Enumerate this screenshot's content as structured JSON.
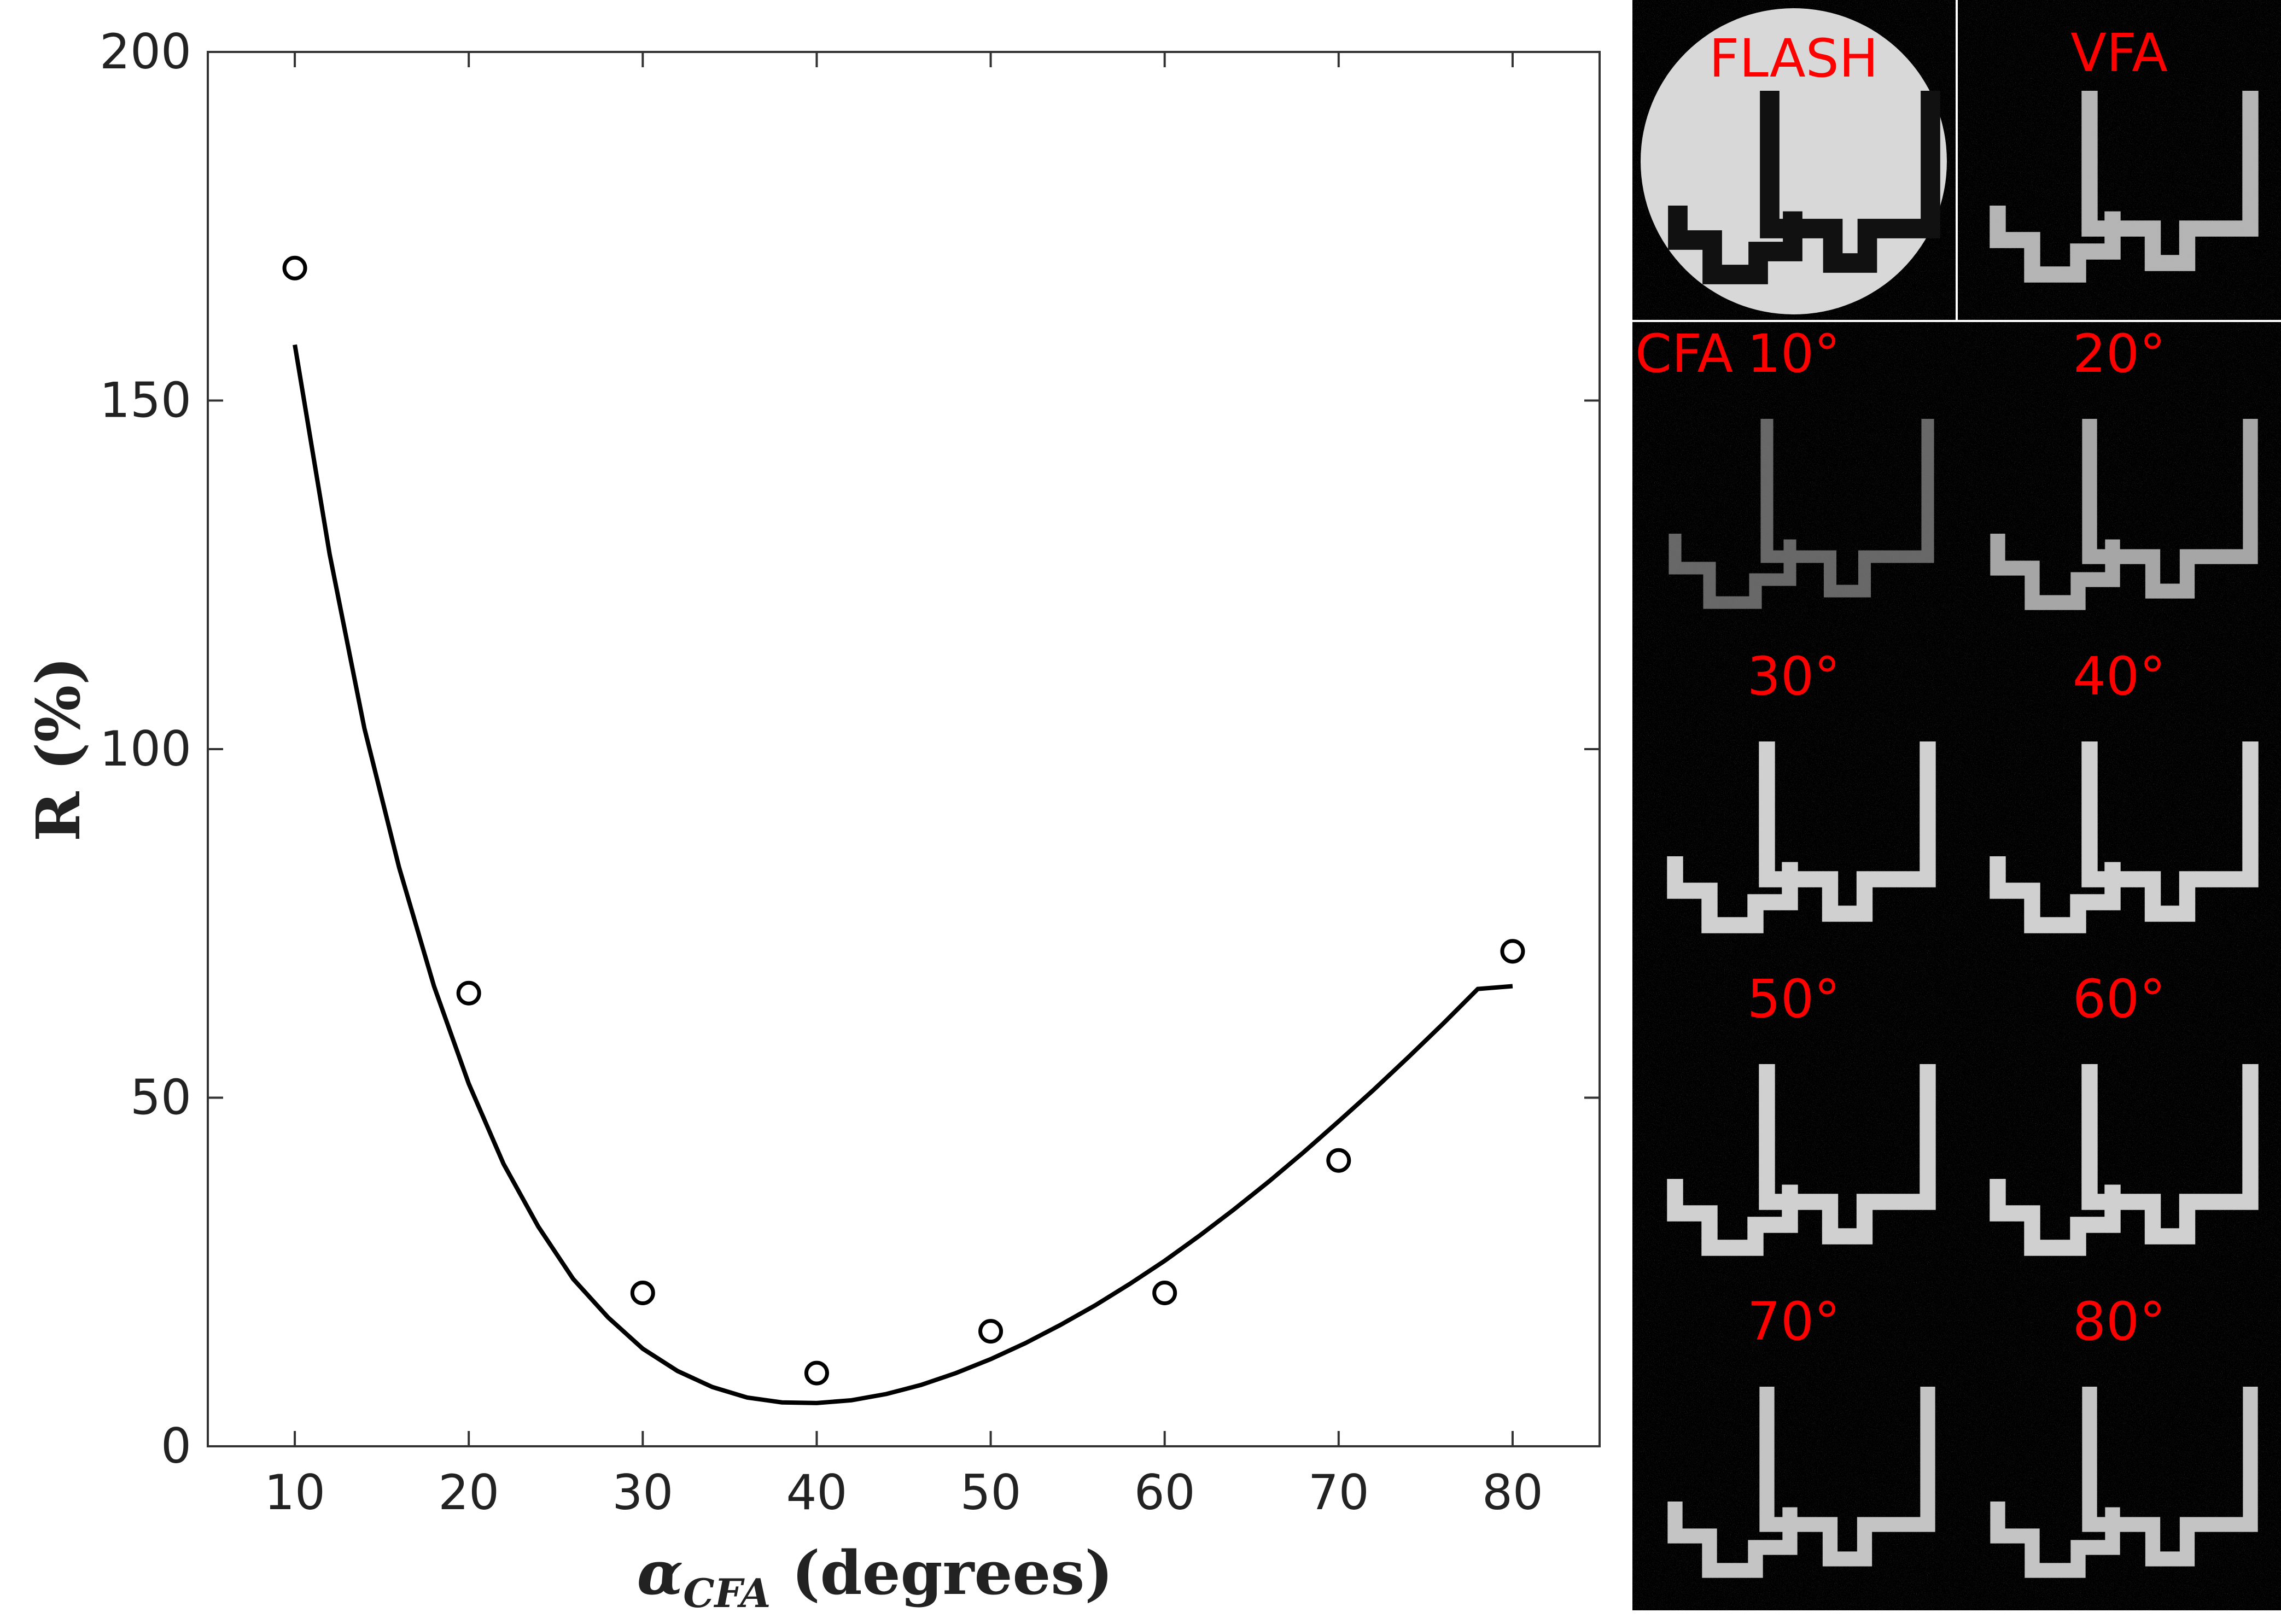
{
  "chart_data": {
    "type": "scatter",
    "xlabel_main": "α",
    "xlabel_sub": "CFA",
    "xlabel_units": " (degrees)",
    "ylabel": "R (%)",
    "xlim": [
      5,
      85
    ],
    "ylim": [
      0,
      200
    ],
    "x_ticks": [
      10,
      20,
      30,
      40,
      50,
      60,
      70,
      80
    ],
    "y_ticks": [
      0,
      50,
      100,
      150,
      200
    ],
    "grid": false,
    "series": [
      {
        "kind": "points",
        "marker": "open-circle",
        "x": [
          10,
          20,
          30,
          40,
          50,
          60,
          70,
          80
        ],
        "y": [
          169,
          65,
          22,
          10.5,
          16.5,
          22,
          41,
          71
        ]
      },
      {
        "kind": "fit-line",
        "x": [
          10,
          12,
          14,
          16,
          18,
          20,
          22,
          24,
          26,
          28,
          30,
          32,
          34,
          36,
          38,
          40,
          42,
          44,
          46,
          48,
          50,
          52,
          54,
          56,
          58,
          60,
          62,
          64,
          66,
          68,
          70,
          72,
          74,
          76,
          78,
          80
        ],
        "y": [
          158,
          128,
          103,
          83,
          66,
          52,
          40.5,
          31.5,
          24,
          18.5,
          14,
          10.8,
          8.5,
          7,
          6.3,
          6.2,
          6.6,
          7.5,
          8.8,
          10.5,
          12.5,
          14.8,
          17.4,
          20.2,
          23.3,
          26.6,
          30.2,
          34,
          38,
          42.2,
          46.6,
          51.1,
          55.8,
          60.6,
          65.6,
          66
        ]
      }
    ]
  },
  "image_panel": {
    "labels": {
      "flash": "FLASH",
      "vfa": "VFA",
      "cfa": "CFA",
      "deg10": "10°",
      "deg20": "20°",
      "deg30": "30°",
      "deg40": "40°",
      "deg50": "50°",
      "deg60": "60°",
      "deg70": "70°",
      "deg80": "80°"
    }
  }
}
